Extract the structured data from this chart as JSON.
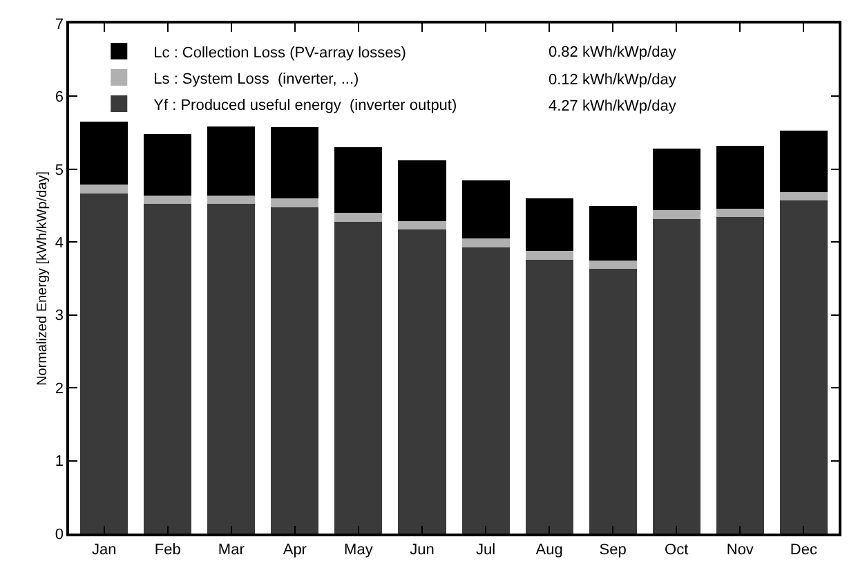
{
  "chart_data": {
    "type": "bar",
    "stacked": true,
    "ylabel": "Normalized Energy [kWh/kWp/day]",
    "categories": [
      "Jan",
      "Feb",
      "Mar",
      "Apr",
      "May",
      "Jun",
      "Jul",
      "Aug",
      "Sep",
      "Oct",
      "Nov",
      "Dec"
    ],
    "series": [
      {
        "name": "Yf : Produced useful energy  (inverter output)",
        "color": "#3a3a3a",
        "values": [
          4.67,
          4.52,
          4.52,
          4.48,
          4.28,
          4.17,
          3.93,
          3.76,
          3.63,
          4.32,
          4.34,
          4.57
        ]
      },
      {
        "name": "Ls : System Loss  (inverter, ...)",
        "color": "#b0b0b0",
        "values": [
          0.12,
          0.12,
          0.12,
          0.12,
          0.12,
          0.12,
          0.12,
          0.12,
          0.12,
          0.12,
          0.12,
          0.12
        ]
      },
      {
        "name": "Lc : Collection Loss (PV-array losses)",
        "color": "#000000",
        "values": [
          0.86,
          0.84,
          0.95,
          0.98,
          0.9,
          0.83,
          0.8,
          0.72,
          0.75,
          0.84,
          0.86,
          0.84
        ]
      }
    ],
    "annotations": [
      "0.82 kWh/kWp/day",
      "0.12 kWh/kWp/day",
      "4.27 kWh/kWp/day"
    ],
    "ylim": [
      0,
      7
    ],
    "yticks": [
      0,
      1,
      2,
      3,
      4,
      5,
      6,
      7
    ],
    "legend": "top left"
  }
}
